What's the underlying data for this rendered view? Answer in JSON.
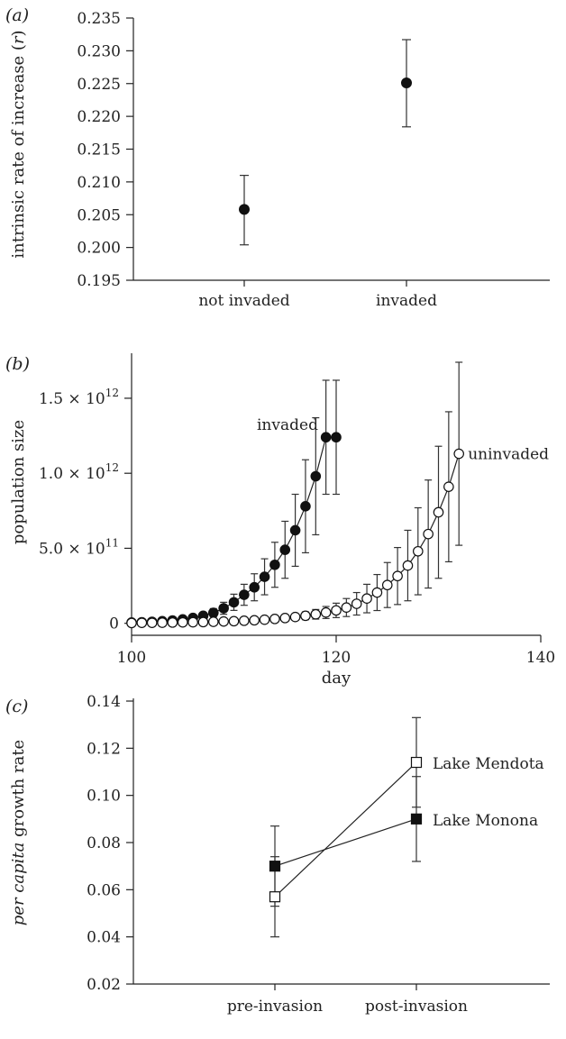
{
  "chart_data": [
    {
      "panel": "(a)",
      "type": "scatter",
      "categories": [
        "not invaded",
        "invaded"
      ],
      "values": [
        0.2058,
        0.2251
      ],
      "err_low": [
        0.2004,
        0.2184
      ],
      "err_high": [
        0.211,
        0.2317
      ],
      "ylabel": "intrinsic rate of increase (r)",
      "ylabel_parts": {
        "before": "intrinsic rate of increase (",
        "italic": "r",
        "after": ")"
      },
      "ylim": [
        0.195,
        0.235
      ],
      "yticks": [
        "0.195",
        "0.200",
        "0.205",
        "0.210",
        "0.215",
        "0.220",
        "0.225",
        "0.230",
        "0.235"
      ],
      "marker": "filled-circle"
    },
    {
      "panel": "(b)",
      "type": "line",
      "xlabel": "day",
      "ylabel": "population size",
      "xlim": [
        100,
        140
      ],
      "ylim": [
        -80000000000.0,
        1800000000000.0
      ],
      "xticks": [
        "100",
        "120",
        "140"
      ],
      "yticks": [
        {
          "value": 0,
          "base": "0",
          "exp": ""
        },
        {
          "value": 500000000000.0,
          "base": "5.0 × 10",
          "exp": "11"
        },
        {
          "value": 1000000000000.0,
          "base": "1.0 × 10",
          "exp": "12"
        },
        {
          "value": 1500000000000.0,
          "base": "1.5 × 10",
          "exp": "12"
        }
      ],
      "series": [
        {
          "name": "invaded",
          "marker": "filled-circle",
          "x": [
            100,
            101,
            102,
            103,
            104,
            105,
            106,
            107,
            108,
            109,
            110,
            111,
            112,
            113,
            114,
            115,
            116,
            117,
            118,
            119,
            120
          ],
          "y": [
            5000000000.0,
            7000000000.0,
            10000000000.0,
            14000000000.0,
            19000000000.0,
            26000000000.0,
            36000000000.0,
            50000000000.0,
            70000000000.0,
            100000000000.0,
            140000000000.0,
            190000000000.0,
            240000000000.0,
            310000000000.0,
            390000000000.0,
            490000000000.0,
            620000000000.0,
            780000000000.0,
            980000000000.0,
            1240000000000.0,
            1240000000000.0
          ],
          "err": [
            2000000000.0,
            3000000000.0,
            4000000000.0,
            6000000000.0,
            8000000000.0,
            11000000000.0,
            15000000000.0,
            20000000000.0,
            28000000000.0,
            40000000000.0,
            54000000000.0,
            70000000000.0,
            90000000000.0,
            120000000000.0,
            150000000000.0,
            190000000000.0,
            240000000000.0,
            310000000000.0,
            390000000000.0,
            380000000000.0,
            380000000000.0
          ]
        },
        {
          "name": "uninvaded",
          "marker": "open-circle",
          "x": [
            100,
            101,
            102,
            103,
            104,
            105,
            106,
            107,
            108,
            109,
            110,
            111,
            112,
            113,
            114,
            115,
            116,
            117,
            118,
            119,
            120,
            121,
            122,
            123,
            124,
            125,
            126,
            127,
            128,
            129,
            130,
            131,
            132
          ],
          "y": [
            2000000000.0,
            3000000000.0,
            3000000000.0,
            4000000000.0,
            5000000000.0,
            6000000000.0,
            7000000000.0,
            8000000000.0,
            10000000000.0,
            12000000000.0,
            14000000000.0,
            17000000000.0,
            20000000000.0,
            24000000000.0,
            29000000000.0,
            35000000000.0,
            42000000000.0,
            50000000000.0,
            60000000000.0,
            72000000000.0,
            86000000000.0,
            105000000000.0,
            130000000000.0,
            165000000000.0,
            205000000000.0,
            255000000000.0,
            315000000000.0,
            385000000000.0,
            480000000000.0,
            595000000000.0,
            740000000000.0,
            910000000000.0,
            1130000000000.0
          ],
          "err": [
            1000000000.0,
            1000000000.0,
            1000000000.0,
            2000000000.0,
            2000000000.0,
            3000000000.0,
            3000000000.0,
            4000000000.0,
            5000000000.0,
            6000000000.0,
            7000000000.0,
            9000000000.0,
            10000000000.0,
            12000000000.0,
            15000000000.0,
            18000000000.0,
            22000000000.0,
            26000000000.0,
            32000000000.0,
            40000000000.0,
            48000000000.0,
            60000000000.0,
            75000000000.0,
            95000000000.0,
            120000000000.0,
            150000000000.0,
            190000000000.0,
            235000000000.0,
            290000000000.0,
            360000000000.0,
            440000000000.0,
            500000000000.0,
            610000000000.0
          ]
        }
      ]
    },
    {
      "panel": "(c)",
      "type": "line",
      "categories": [
        "pre-invasion",
        "post-invasion"
      ],
      "ylabel_parts": {
        "italic": "per capita",
        "after": " growth rate"
      },
      "ylim": [
        0.02,
        0.14
      ],
      "yticks": [
        "0.02",
        "0.04",
        "0.06",
        "0.08",
        "0.10",
        "0.12",
        "0.14"
      ],
      "series": [
        {
          "name": "Lake Mendota",
          "marker": "open-square",
          "values": [
            0.057,
            0.114
          ],
          "err_low": [
            0.04,
            0.095
          ],
          "err_high": [
            0.074,
            0.133
          ]
        },
        {
          "name": "Lake Monona",
          "marker": "filled-square",
          "values": [
            0.07,
            0.09
          ],
          "err_low": [
            0.053,
            0.072
          ],
          "err_high": [
            0.087,
            0.108
          ]
        }
      ]
    }
  ]
}
